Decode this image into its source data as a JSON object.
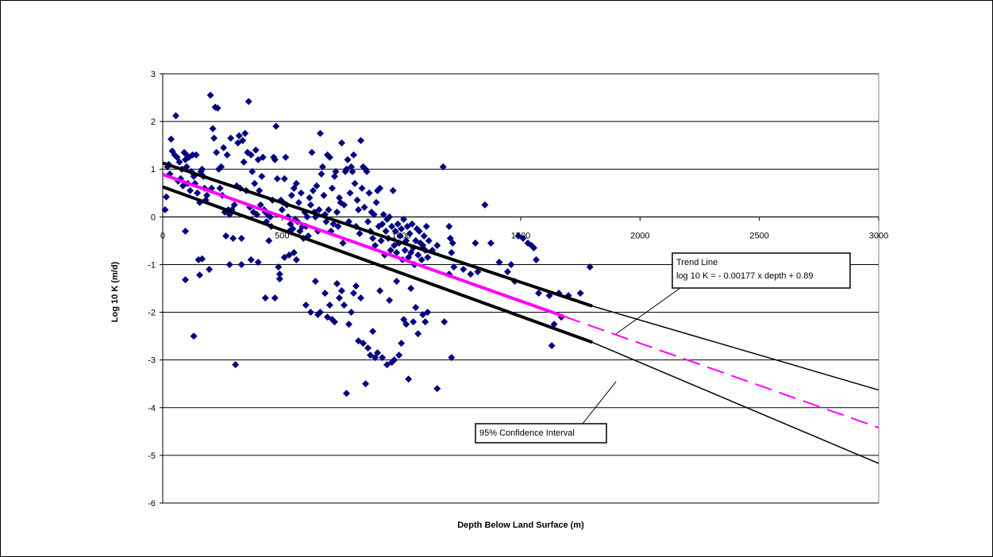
{
  "chart_data": {
    "type": "scatter",
    "title": "",
    "xlabel": "Depth Below Land Surface (m)",
    "ylabel": "Log 10 K (m/d)",
    "xlim": [
      0,
      3000
    ],
    "ylim": [
      -6,
      3
    ],
    "x_ticks": [
      0,
      500,
      1000,
      1500,
      2000,
      2500,
      3000
    ],
    "y_ticks": [
      3,
      2,
      1,
      0,
      -1,
      -2,
      -3,
      -4,
      -5,
      -6
    ],
    "grid": "horizontal",
    "colors": {
      "points": "#000080",
      "trend": "#ff00ff",
      "confidence": "#000000"
    },
    "trend_line": {
      "slope": -0.00177,
      "intercept": 0.89,
      "solid_range": [
        0,
        1680
      ],
      "dashed_range": [
        1680,
        3000
      ]
    },
    "confidence_interval": {
      "upper": [
        [
          0,
          1.13
        ],
        [
          1800,
          -1.87
        ],
        [
          3000,
          -3.63
        ]
      ],
      "lower": [
        [
          0,
          0.63
        ],
        [
          1800,
          -2.63
        ],
        [
          3000,
          -5.17
        ]
      ],
      "thick_to": 1800
    },
    "annotations": [
      {
        "name": "trend-line-label",
        "lines": [
          "Trend Line",
          "log 10 K = - 0.00177 x depth + 0.89"
        ],
        "pointer_to": [
          1900,
          -2.45
        ]
      },
      {
        "name": "confidence-interval-label",
        "lines": [
          "95% Confidence Interval"
        ],
        "pointer_to": [
          1900,
          -3.45
        ]
      }
    ],
    "points": [
      [
        10,
        0.15
      ],
      [
        15,
        0.42
      ],
      [
        20,
        1.05
      ],
      [
        25,
        1.1
      ],
      [
        30,
        0.9
      ],
      [
        35,
        1.63
      ],
      [
        40,
        1.38
      ],
      [
        50,
        1.3
      ],
      [
        55,
        2.12
      ],
      [
        60,
        1.25
      ],
      [
        65,
        0.75
      ],
      [
        70,
        1.15
      ],
      [
        75,
        0.8
      ],
      [
        80,
        1.0
      ],
      [
        85,
        0.65
      ],
      [
        90,
        1.35
      ],
      [
        95,
        1.2
      ],
      [
        100,
        1.05
      ],
      [
        100,
        1.3
      ],
      [
        105,
        0.7
      ],
      [
        110,
        1.25
      ],
      [
        115,
        0.55
      ],
      [
        120,
        0.95
      ],
      [
        125,
        1.3
      ],
      [
        130,
        0.85
      ],
      [
        135,
        0.7
      ],
      [
        140,
        1.3
      ],
      [
        145,
        0.5
      ],
      [
        150,
        -0.9
      ],
      [
        155,
        0.3
      ],
      [
        160,
        0.95
      ],
      [
        165,
        1.0
      ],
      [
        170,
        0.85
      ],
      [
        175,
        0.6
      ],
      [
        180,
        0.35
      ],
      [
        185,
        0.45
      ],
      [
        95,
        -0.3
      ],
      [
        95,
        -1.32
      ],
      [
        130,
        -2.5
      ],
      [
        155,
        -1.22
      ],
      [
        165,
        -0.88
      ],
      [
        195,
        -1.1
      ],
      [
        200,
        2.55
      ],
      [
        205,
        0.6
      ],
      [
        210,
        1.85
      ],
      [
        215,
        1.65
      ],
      [
        220,
        2.3
      ],
      [
        225,
        1.35
      ],
      [
        230,
        2.28
      ],
      [
        235,
        1.0
      ],
      [
        240,
        0.6
      ],
      [
        245,
        1.05
      ],
      [
        250,
        0.45
      ],
      [
        255,
        1.45
      ],
      [
        260,
        0.1
      ],
      [
        265,
        -0.4
      ],
      [
        270,
        1.3
      ],
      [
        275,
        0.15
      ],
      [
        280,
        0.05
      ],
      [
        285,
        1.65
      ],
      [
        290,
        0.15
      ],
      [
        295,
        -0.45
      ],
      [
        300,
        0.25
      ],
      [
        305,
        -3.1
      ],
      [
        310,
        0.65
      ],
      [
        315,
        1.55
      ],
      [
        320,
        1.7
      ],
      [
        325,
        0.6
      ],
      [
        330,
        -0.45
      ],
      [
        335,
        1.6
      ],
      [
        340,
        1.15
      ],
      [
        345,
        1.75
      ],
      [
        350,
        0.55
      ],
      [
        355,
        1.35
      ],
      [
        360,
        2.42
      ],
      [
        365,
        0.2
      ],
      [
        370,
        1.3
      ],
      [
        375,
        0.95
      ],
      [
        380,
        0.1
      ],
      [
        385,
        0.7
      ],
      [
        390,
        1.4
      ],
      [
        395,
        0.05
      ],
      [
        400,
        1.2
      ],
      [
        405,
        0.55
      ],
      [
        410,
        0.25
      ],
      [
        415,
        0.85
      ],
      [
        420,
        1.25
      ],
      [
        425,
        0.15
      ],
      [
        430,
        0.1
      ],
      [
        435,
        -0.1
      ],
      [
        440,
        0.05
      ],
      [
        445,
        -0.5
      ],
      [
        450,
        0.0
      ],
      [
        455,
        -0.2
      ],
      [
        460,
        0.35
      ],
      [
        465,
        1.25
      ],
      [
        470,
        1.2
      ],
      [
        475,
        1.9
      ],
      [
        480,
        0.8
      ],
      [
        485,
        -1.05
      ],
      [
        490,
        -1.3
      ],
      [
        495,
        0.35
      ],
      [
        500,
        0.15
      ],
      [
        505,
        0.3
      ],
      [
        510,
        0.8
      ],
      [
        515,
        1.25
      ],
      [
        520,
        0.25
      ],
      [
        525,
        0.0
      ],
      [
        530,
        -0.3
      ],
      [
        535,
        -0.15
      ],
      [
        540,
        0.45
      ],
      [
        545,
        -0.25
      ],
      [
        550,
        0.6
      ],
      [
        555,
        -0.05
      ],
      [
        560,
        0.7
      ],
      [
        565,
        -0.1
      ],
      [
        570,
        0.3
      ],
      [
        575,
        -0.3
      ],
      [
        580,
        0.5
      ],
      [
        585,
        -0.2
      ],
      [
        590,
        -0.45
      ],
      [
        595,
        0.1
      ],
      [
        600,
        -0.2
      ],
      [
        605,
        0.0
      ],
      [
        610,
        -0.4
      ],
      [
        615,
        0.4
      ],
      [
        620,
        0.25
      ],
      [
        625,
        1.35
      ],
      [
        630,
        0.55
      ],
      [
        635,
        0.1
      ],
      [
        640,
        0.0
      ],
      [
        645,
        0.65
      ],
      [
        650,
        -0.3
      ],
      [
        655,
        0.15
      ],
      [
        660,
        1.75
      ],
      [
        665,
        0.9
      ],
      [
        670,
        1.05
      ],
      [
        675,
        0.45
      ],
      [
        680,
        0.05
      ],
      [
        685,
        -0.1
      ],
      [
        690,
        1.3
      ],
      [
        695,
        0.15
      ],
      [
        700,
        1.25
      ],
      [
        705,
        -0.3
      ],
      [
        710,
        0.6
      ],
      [
        715,
        -0.15
      ],
      [
        720,
        0.85
      ],
      [
        725,
        0.95
      ],
      [
        730,
        0.1
      ],
      [
        735,
        -0.2
      ],
      [
        740,
        0.4
      ],
      [
        745,
        0.3
      ],
      [
        750,
        1.55
      ],
      [
        755,
        -0.55
      ],
      [
        760,
        0.25
      ],
      [
        765,
        0.95
      ],
      [
        770,
        1.0
      ],
      [
        775,
        1.2
      ],
      [
        780,
        -0.1
      ],
      [
        785,
        0.5
      ],
      [
        790,
        1.05
      ],
      [
        795,
        0.95
      ],
      [
        800,
        1.3
      ],
      [
        805,
        0.7
      ],
      [
        810,
        -0.2
      ],
      [
        815,
        0.35
      ],
      [
        820,
        0.15
      ],
      [
        825,
        -0.35
      ],
      [
        830,
        1.6
      ],
      [
        835,
        0.6
      ],
      [
        840,
        1.05
      ],
      [
        845,
        0.2
      ],
      [
        850,
        1.0
      ],
      [
        855,
        0.95
      ],
      [
        860,
        -0.1
      ],
      [
        865,
        0.5
      ],
      [
        870,
        -0.3
      ],
      [
        875,
        0.1
      ],
      [
        880,
        -0.45
      ],
      [
        885,
        0.05
      ],
      [
        890,
        -0.6
      ],
      [
        895,
        0.3
      ],
      [
        900,
        0.55
      ],
      [
        905,
        -0.2
      ],
      [
        910,
        0.6
      ],
      [
        915,
        -0.5
      ],
      [
        920,
        -0.15
      ],
      [
        925,
        0.05
      ],
      [
        930,
        -0.8
      ],
      [
        935,
        -0.3
      ],
      [
        940,
        -0.05
      ],
      [
        945,
        -0.45
      ],
      [
        950,
        0.0
      ],
      [
        955,
        -0.7
      ],
      [
        960,
        -0.2
      ],
      [
        965,
        0.55
      ],
      [
        970,
        -0.6
      ],
      [
        975,
        -0.3
      ],
      [
        980,
        -0.75
      ],
      [
        985,
        -0.15
      ],
      [
        990,
        -0.55
      ],
      [
        995,
        -0.4
      ],
      [
        1000,
        -0.25
      ],
      [
        1005,
        -0.9
      ],
      [
        1010,
        -0.05
      ],
      [
        1015,
        -0.7
      ],
      [
        1020,
        -0.5
      ],
      [
        1025,
        -0.2
      ],
      [
        1030,
        -0.85
      ],
      [
        1035,
        -0.35
      ],
      [
        1040,
        -0.75
      ],
      [
        1045,
        -0.15
      ],
      [
        1050,
        -0.65
      ],
      [
        1055,
        -1.0
      ],
      [
        1060,
        -0.5
      ],
      [
        1065,
        -0.25
      ],
      [
        1070,
        -0.8
      ],
      [
        1075,
        -0.3
      ],
      [
        1080,
        -0.55
      ],
      [
        1085,
        -0.9
      ],
      [
        1090,
        -0.6
      ],
      [
        1095,
        -0.4
      ],
      [
        1100,
        -0.7
      ],
      [
        1105,
        -0.2
      ],
      [
        1110,
        -0.85
      ],
      [
        1115,
        -0.5
      ],
      [
        1130,
        -0.7
      ],
      [
        1150,
        -0.6
      ],
      [
        1175,
        1.05
      ],
      [
        1200,
        -0.2
      ],
      [
        1205,
        -0.45
      ],
      [
        1210,
        -0.75
      ],
      [
        1215,
        -0.55
      ],
      [
        1220,
        -1.05
      ],
      [
        1260,
        -1.1
      ],
      [
        1290,
        -1.2
      ],
      [
        1310,
        -0.55
      ],
      [
        1320,
        -1.15
      ],
      [
        1350,
        0.25
      ],
      [
        1375,
        -0.55
      ],
      [
        1410,
        -0.95
      ],
      [
        1445,
        -1.15
      ],
      [
        1460,
        -1.0
      ],
      [
        1475,
        -1.35
      ],
      [
        1490,
        -0.4
      ],
      [
        1510,
        -0.45
      ],
      [
        1530,
        -0.55
      ],
      [
        1545,
        -0.6
      ],
      [
        1555,
        -0.65
      ],
      [
        1565,
        -0.9
      ],
      [
        1575,
        -1.6
      ],
      [
        1620,
        -1.65
      ],
      [
        1660,
        -1.6
      ],
      [
        1700,
        -1.65
      ],
      [
        1750,
        -1.6
      ],
      [
        1790,
        -1.05
      ],
      [
        1640,
        -2.25
      ],
      [
        1670,
        -2.1
      ],
      [
        1630,
        -2.7
      ],
      [
        600,
        -1.85
      ],
      [
        620,
        -2.0
      ],
      [
        640,
        -1.35
      ],
      [
        650,
        -2.05
      ],
      [
        660,
        -2.0
      ],
      [
        680,
        -1.6
      ],
      [
        690,
        -2.1
      ],
      [
        700,
        -1.85
      ],
      [
        710,
        -2.15
      ],
      [
        720,
        -2.2
      ],
      [
        730,
        -1.4
      ],
      [
        740,
        -1.7
      ],
      [
        750,
        -1.55
      ],
      [
        760,
        -1.85
      ],
      [
        770,
        -3.7
      ],
      [
        780,
        -2.25
      ],
      [
        790,
        -2.0
      ],
      [
        800,
        -1.6
      ],
      [
        810,
        -1.45
      ],
      [
        820,
        -2.6
      ],
      [
        830,
        -1.7
      ],
      [
        840,
        -2.65
      ],
      [
        850,
        -3.5
      ],
      [
        860,
        -2.75
      ],
      [
        870,
        -2.9
      ],
      [
        880,
        -2.4
      ],
      [
        890,
        -2.95
      ],
      [
        900,
        -2.85
      ],
      [
        910,
        -1.55
      ],
      [
        920,
        -2.95
      ],
      [
        940,
        -3.1
      ],
      [
        950,
        -1.75
      ],
      [
        960,
        -3.05
      ],
      [
        970,
        -3.0
      ],
      [
        980,
        -1.35
      ],
      [
        990,
        -2.9
      ],
      [
        1000,
        -2.65
      ],
      [
        1010,
        -2.15
      ],
      [
        1020,
        -2.25
      ],
      [
        1030,
        -3.4
      ],
      [
        1040,
        -1.5
      ],
      [
        1050,
        -2.2
      ],
      [
        1060,
        -1.9
      ],
      [
        1070,
        -2.45
      ],
      [
        1090,
        -2.05
      ],
      [
        1100,
        -2.2
      ],
      [
        1110,
        -2.0
      ],
      [
        1150,
        -3.6
      ],
      [
        1180,
        -2.2
      ],
      [
        1200,
        -1.2
      ],
      [
        1210,
        -2.95
      ],
      [
        490,
        -1.2
      ],
      [
        510,
        -0.85
      ],
      [
        530,
        -0.8
      ],
      [
        550,
        -0.75
      ],
      [
        560,
        -0.9
      ],
      [
        430,
        -1.7
      ],
      [
        470,
        -1.7
      ],
      [
        400,
        -0.95
      ],
      [
        330,
        -1.0
      ],
      [
        370,
        -0.9
      ],
      [
        280,
        -1.0
      ]
    ]
  }
}
